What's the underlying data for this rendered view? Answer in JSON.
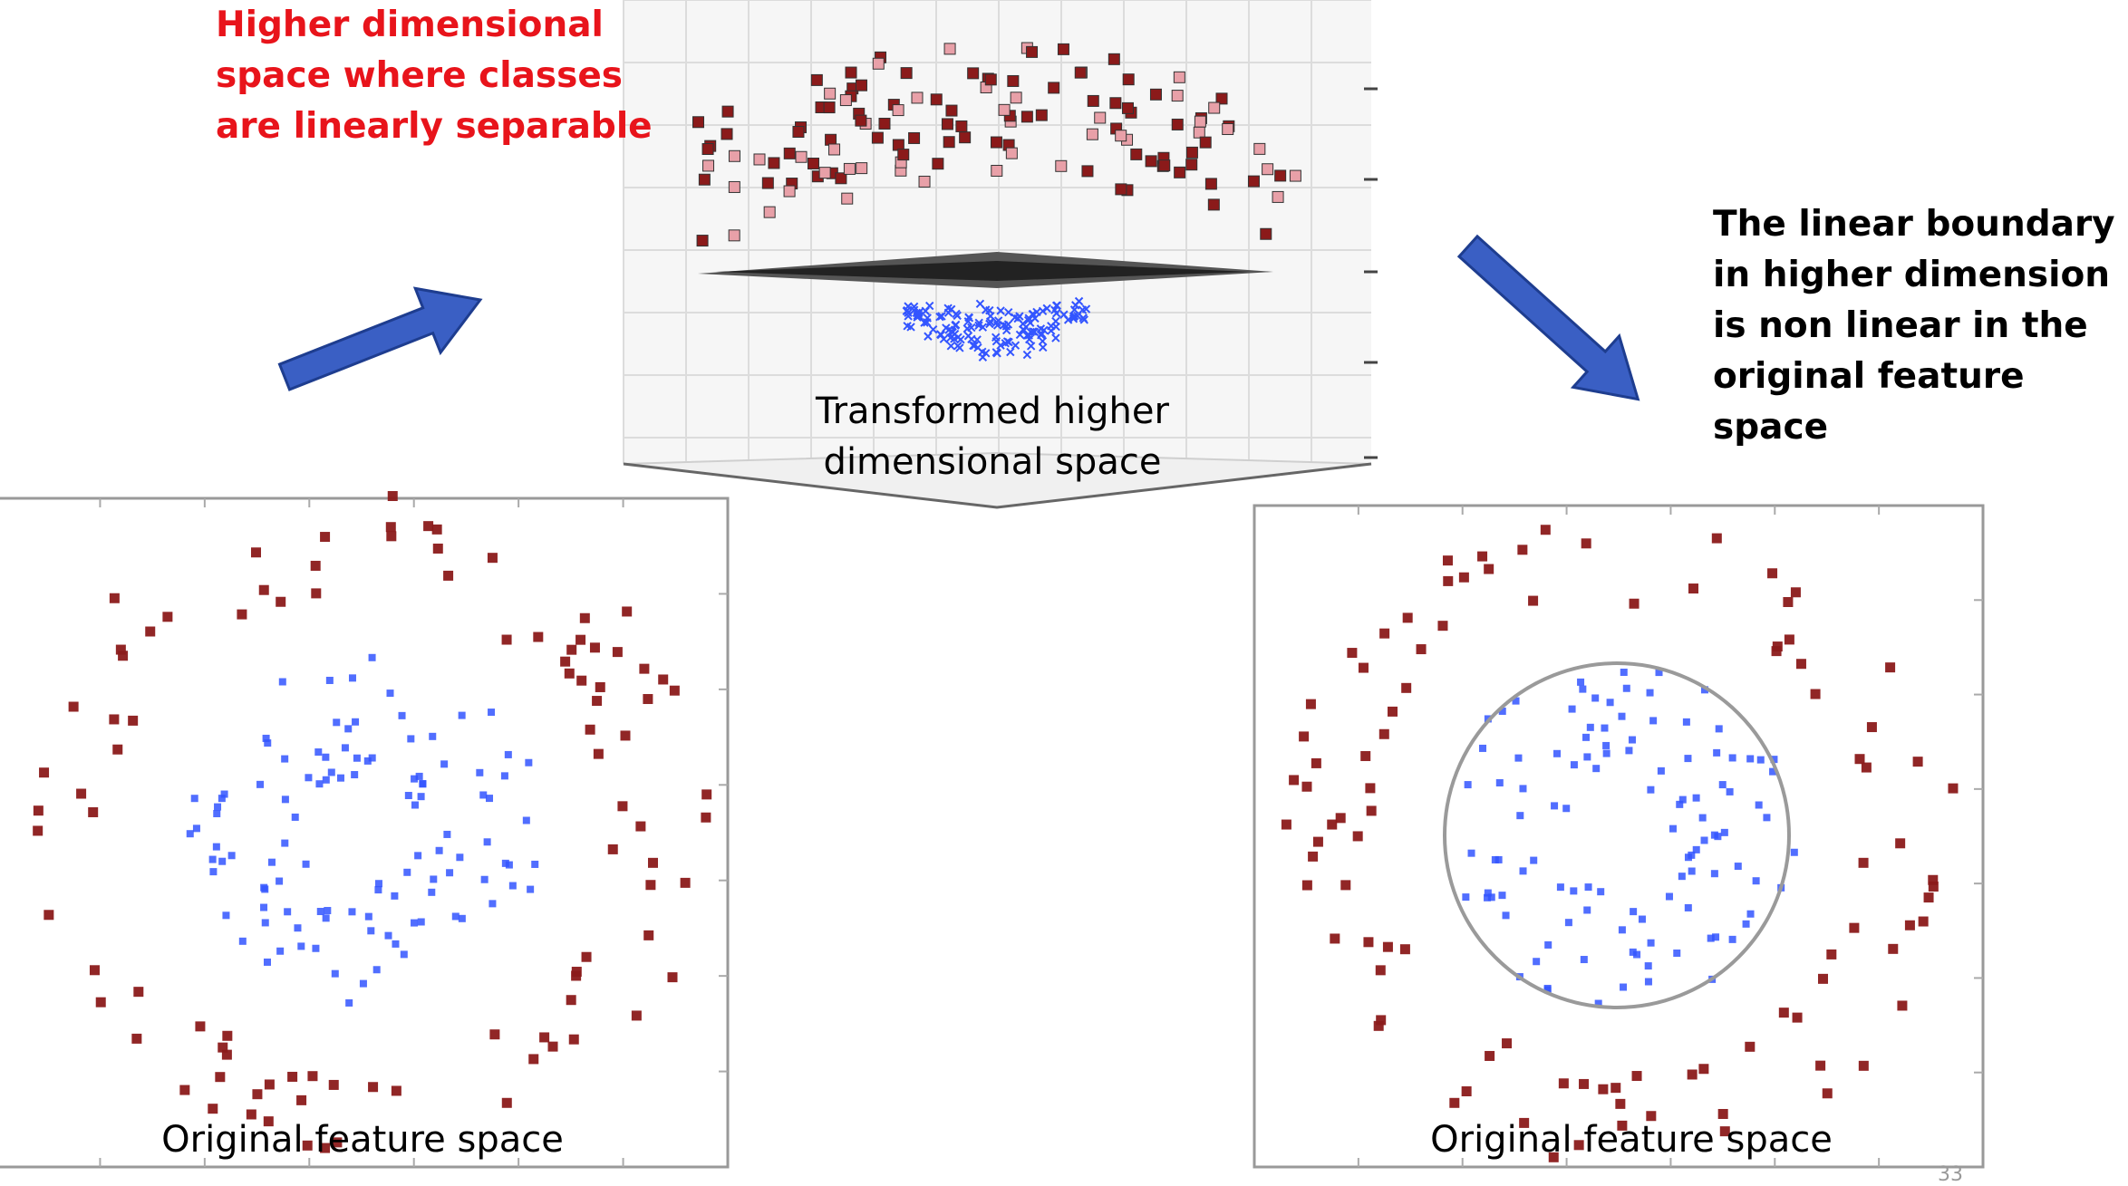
{
  "annotations": {
    "higher_space_note": "Higher dimensional space where classes are linearly separable",
    "boundary_note": "The linear boundary in higher dimension is non linear in the original feature space"
  },
  "captions": {
    "transformed": "Transformed higher dimensional space",
    "original_left": "Original feature space",
    "original_right": "Original feature space"
  },
  "slide_number": "33",
  "colors": {
    "note_red": "#e8141b",
    "arrow_blue": "#3a5fc4",
    "class_red": "#8b1a1a",
    "class_pink": "#e8a0a8",
    "class_blue": "#3355ff",
    "boundary_gray": "#9a9a9a"
  },
  "icons": {
    "arrow": "block-arrow-icon"
  },
  "chart_data": [
    {
      "type": "scatter",
      "series": [
        {
          "distribution": "outer ring",
          "radius_range": [
            3.5,
            5.0
          ],
          "count": 95,
          "marker": "square",
          "color": "#8b1a1a"
        },
        {
          "distribution": "inner ring",
          "radius_range": [
            0.8,
            2.6
          ],
          "count": 110,
          "marker": "square-small",
          "color": "#3355ff"
        }
      ]
    },
    {
      "type": "scatter",
      "series": [
        {
          "distribution": "outer ring",
          "radius_range": [
            3.5,
            5.0
          ],
          "count": 95,
          "marker": "square",
          "color": "#8b1a1a"
        },
        {
          "distribution": "inner ring",
          "radius_range": [
            0.8,
            2.6
          ],
          "count": 110,
          "marker": "square-small",
          "color": "#3355ff"
        }
      ],
      "boundary": {
        "shape": "circle",
        "radius": 3.0
      }
    },
    {
      "type": "scatter",
      "series": [
        {
          "distribution": "upper cloud",
          "count": 130,
          "marker": "square",
          "color": "#8b1a1a"
        },
        {
          "distribution": "lower cloud",
          "count": 140,
          "marker": "x",
          "color": "#3355ff"
        }
      ],
      "boundary": {
        "shape": "plane"
      }
    }
  ]
}
